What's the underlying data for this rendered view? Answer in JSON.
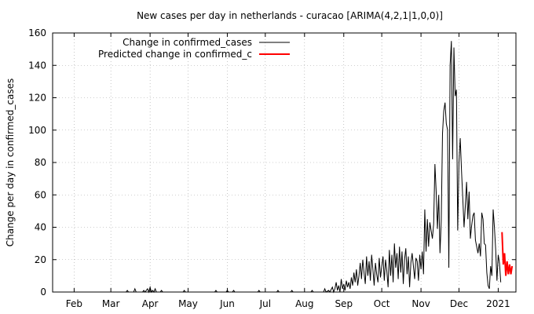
{
  "chart_data": {
    "type": "line",
    "title": "New cases per day in netherlands - curacao [ARIMA(4,2,1|1,0,0)]",
    "xlabel": "",
    "ylabel": "Change per day in confirmed_cases",
    "ylim": [
      0,
      160
    ],
    "yticks": [
      0,
      20,
      40,
      60,
      80,
      100,
      120,
      140,
      160
    ],
    "xlim": [
      "2021-01-15",
      "2021-01-15"
    ],
    "x_range": [
      "2020-01-15",
      "2021-01-15"
    ],
    "xticks": [
      {
        "label": "Feb",
        "date": "2020-02-01"
      },
      {
        "label": "Mar",
        "date": "2020-03-01"
      },
      {
        "label": "Apr",
        "date": "2020-04-01"
      },
      {
        "label": "May",
        "date": "2020-05-01"
      },
      {
        "label": "Jun",
        "date": "2020-06-01"
      },
      {
        "label": "Jul",
        "date": "2020-07-01"
      },
      {
        "label": "Aug",
        "date": "2020-08-01"
      },
      {
        "label": "Sep",
        "date": "2020-09-01"
      },
      {
        "label": "Oct",
        "date": "2020-10-01"
      },
      {
        "label": "Nov",
        "date": "2020-11-01"
      },
      {
        "label": "Dec",
        "date": "2020-12-01"
      },
      {
        "label": "2021",
        "date": "2021-01-01"
      }
    ],
    "grid": true,
    "legend_position": "top-left",
    "series": [
      {
        "name": "Change in confirmed_cases",
        "color": "#000000",
        "points": [
          [
            "2020-03-13",
            0
          ],
          [
            "2020-03-14",
            1
          ],
          [
            "2020-03-15",
            0
          ],
          [
            "2020-03-19",
            0
          ],
          [
            "2020-03-20",
            2
          ],
          [
            "2020-03-21",
            0
          ],
          [
            "2020-03-26",
            0
          ],
          [
            "2020-03-27",
            1
          ],
          [
            "2020-03-28",
            0
          ],
          [
            "2020-03-30",
            2
          ],
          [
            "2020-03-31",
            0
          ],
          [
            "2020-04-01",
            3
          ],
          [
            "2020-04-02",
            0
          ],
          [
            "2020-04-03",
            1
          ],
          [
            "2020-04-04",
            0
          ],
          [
            "2020-04-05",
            2
          ],
          [
            "2020-04-06",
            0
          ],
          [
            "2020-04-09",
            0
          ],
          [
            "2020-04-10",
            1
          ],
          [
            "2020-04-11",
            0
          ],
          [
            "2020-04-27",
            0
          ],
          [
            "2020-04-28",
            1
          ],
          [
            "2020-04-29",
            0
          ],
          [
            "2020-05-22",
            0
          ],
          [
            "2020-05-23",
            1
          ],
          [
            "2020-05-24",
            0
          ],
          [
            "2020-05-31",
            0
          ],
          [
            "2020-06-01",
            1
          ],
          [
            "2020-06-02",
            0
          ],
          [
            "2020-06-05",
            0
          ],
          [
            "2020-06-06",
            1
          ],
          [
            "2020-06-07",
            0
          ],
          [
            "2020-06-25",
            0
          ],
          [
            "2020-06-26",
            1
          ],
          [
            "2020-06-27",
            0
          ],
          [
            "2020-07-10",
            0
          ],
          [
            "2020-07-11",
            1
          ],
          [
            "2020-07-12",
            0
          ],
          [
            "2020-07-21",
            0
          ],
          [
            "2020-07-22",
            1
          ],
          [
            "2020-07-23",
            0
          ],
          [
            "2020-08-06",
            0
          ],
          [
            "2020-08-07",
            1
          ],
          [
            "2020-08-08",
            0
          ],
          [
            "2020-08-16",
            0
          ],
          [
            "2020-08-17",
            2
          ],
          [
            "2020-08-18",
            0
          ],
          [
            "2020-08-20",
            1
          ],
          [
            "2020-08-21",
            0
          ],
          [
            "2020-08-23",
            3
          ],
          [
            "2020-08-24",
            0
          ],
          [
            "2020-08-25",
            2
          ],
          [
            "2020-08-26",
            6
          ],
          [
            "2020-08-27",
            1
          ],
          [
            "2020-08-28",
            4
          ],
          [
            "2020-08-29",
            0
          ],
          [
            "2020-08-30",
            8
          ],
          [
            "2020-08-31",
            2
          ],
          [
            "2020-09-01",
            5
          ],
          [
            "2020-09-02",
            1
          ],
          [
            "2020-09-03",
            7
          ],
          [
            "2020-09-04",
            3
          ],
          [
            "2020-09-05",
            6
          ],
          [
            "2020-09-06",
            2
          ],
          [
            "2020-09-07",
            9
          ],
          [
            "2020-09-08",
            4
          ],
          [
            "2020-09-09",
            12
          ],
          [
            "2020-09-10",
            6
          ],
          [
            "2020-09-11",
            14
          ],
          [
            "2020-09-12",
            4
          ],
          [
            "2020-09-13",
            10
          ],
          [
            "2020-09-14",
            18
          ],
          [
            "2020-09-15",
            8
          ],
          [
            "2020-09-16",
            20
          ],
          [
            "2020-09-17",
            12
          ],
          [
            "2020-09-18",
            5
          ],
          [
            "2020-09-19",
            22
          ],
          [
            "2020-09-20",
            10
          ],
          [
            "2020-09-21",
            19
          ],
          [
            "2020-09-22",
            7
          ],
          [
            "2020-09-23",
            23
          ],
          [
            "2020-09-24",
            14
          ],
          [
            "2020-09-25",
            4
          ],
          [
            "2020-09-26",
            18
          ],
          [
            "2020-09-27",
            11
          ],
          [
            "2020-09-28",
            6
          ],
          [
            "2020-09-29",
            21
          ],
          [
            "2020-09-30",
            9
          ],
          [
            "2020-10-01",
            16
          ],
          [
            "2020-10-02",
            22
          ],
          [
            "2020-10-03",
            7
          ],
          [
            "2020-10-04",
            20
          ],
          [
            "2020-10-05",
            13
          ],
          [
            "2020-10-06",
            3
          ],
          [
            "2020-10-07",
            26
          ],
          [
            "2020-10-08",
            10
          ],
          [
            "2020-10-09",
            23
          ],
          [
            "2020-10-10",
            6
          ],
          [
            "2020-10-11",
            30
          ],
          [
            "2020-10-12",
            15
          ],
          [
            "2020-10-13",
            24
          ],
          [
            "2020-10-14",
            8
          ],
          [
            "2020-10-15",
            28
          ],
          [
            "2020-10-16",
            12
          ],
          [
            "2020-10-17",
            25
          ],
          [
            "2020-10-18",
            5
          ],
          [
            "2020-10-19",
            20
          ],
          [
            "2020-10-20",
            27
          ],
          [
            "2020-10-21",
            11
          ],
          [
            "2020-10-22",
            22
          ],
          [
            "2020-10-23",
            3
          ],
          [
            "2020-10-24",
            18
          ],
          [
            "2020-10-25",
            24
          ],
          [
            "2020-10-26",
            16
          ],
          [
            "2020-10-27",
            8
          ],
          [
            "2020-10-28",
            21
          ],
          [
            "2020-10-29",
            19
          ],
          [
            "2020-10-30",
            7
          ],
          [
            "2020-10-31",
            23
          ],
          [
            "2020-11-01",
            14
          ],
          [
            "2020-11-02",
            25
          ],
          [
            "2020-11-03",
            11
          ],
          [
            "2020-11-04",
            51
          ],
          [
            "2020-11-05",
            25
          ],
          [
            "2020-11-06",
            45
          ],
          [
            "2020-11-07",
            28
          ],
          [
            "2020-11-08",
            43
          ],
          [
            "2020-11-09",
            38
          ],
          [
            "2020-11-10",
            33
          ],
          [
            "2020-11-11",
            42
          ],
          [
            "2020-11-12",
            79
          ],
          [
            "2020-11-13",
            62
          ],
          [
            "2020-11-14",
            39
          ],
          [
            "2020-11-15",
            60
          ],
          [
            "2020-11-16",
            24
          ],
          [
            "2020-11-17",
            44
          ],
          [
            "2020-11-18",
            98
          ],
          [
            "2020-11-19",
            112
          ],
          [
            "2020-11-20",
            117
          ],
          [
            "2020-11-21",
            104
          ],
          [
            "2020-11-22",
            100
          ],
          [
            "2020-11-23",
            15
          ],
          [
            "2020-11-24",
            140
          ],
          [
            "2020-11-25",
            155
          ],
          [
            "2020-11-26",
            82
          ],
          [
            "2020-11-27",
            151
          ],
          [
            "2020-11-28",
            121
          ],
          [
            "2020-11-29",
            125
          ],
          [
            "2020-11-30",
            38
          ],
          [
            "2020-12-01",
            80
          ],
          [
            "2020-12-02",
            95
          ],
          [
            "2020-12-03",
            75
          ],
          [
            "2020-12-04",
            58
          ],
          [
            "2020-12-05",
            40
          ],
          [
            "2020-12-06",
            53
          ],
          [
            "2020-12-07",
            68
          ],
          [
            "2020-12-08",
            45
          ],
          [
            "2020-12-09",
            62
          ],
          [
            "2020-12-10",
            33
          ],
          [
            "2020-12-11",
            41
          ],
          [
            "2020-12-12",
            47
          ],
          [
            "2020-12-13",
            49
          ],
          [
            "2020-12-14",
            32
          ],
          [
            "2020-12-15",
            28
          ],
          [
            "2020-12-16",
            24
          ],
          [
            "2020-12-17",
            30
          ],
          [
            "2020-12-18",
            22
          ],
          [
            "2020-12-19",
            49
          ],
          [
            "2020-12-20",
            45
          ],
          [
            "2020-12-21",
            30
          ],
          [
            "2020-12-22",
            29
          ],
          [
            "2020-12-23",
            12
          ],
          [
            "2020-12-24",
            4
          ],
          [
            "2020-12-25",
            2
          ],
          [
            "2020-12-26",
            16
          ],
          [
            "2020-12-27",
            10
          ],
          [
            "2020-12-28",
            51
          ],
          [
            "2020-12-29",
            40
          ],
          [
            "2020-12-30",
            26
          ],
          [
            "2020-12-31",
            7
          ],
          [
            "2021-01-01",
            23
          ],
          [
            "2021-01-02",
            18
          ],
          [
            "2021-01-03",
            6
          ]
        ]
      },
      {
        "name": "Predicted change in confirmed_c",
        "color": "#ff0000",
        "points": [
          [
            "2021-01-04",
            37
          ],
          [
            "2021-01-05",
            17
          ],
          [
            "2021-01-06",
            24
          ],
          [
            "2021-01-07",
            10
          ],
          [
            "2021-01-08",
            19
          ],
          [
            "2021-01-09",
            11
          ],
          [
            "2021-01-10",
            17
          ],
          [
            "2021-01-11",
            11
          ],
          [
            "2021-01-12",
            16
          ]
        ]
      }
    ]
  }
}
